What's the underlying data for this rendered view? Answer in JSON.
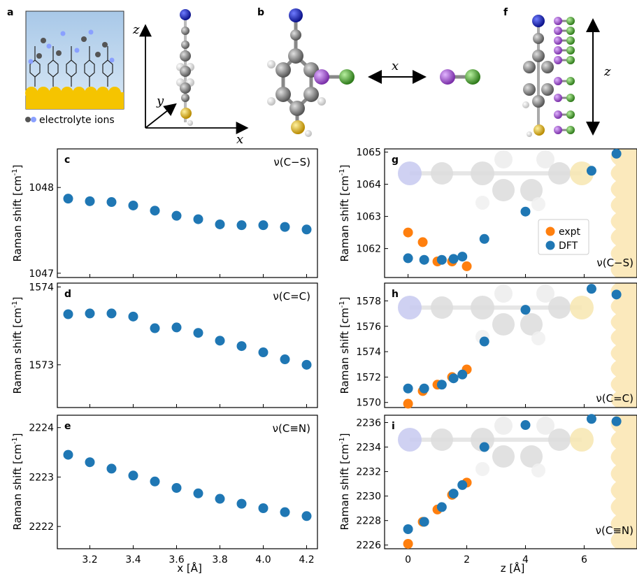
{
  "figure": {
    "legend_ions": "electrolyte ions",
    "axis_x": "x",
    "axis_y": "y",
    "axis_z": "z",
    "colors": {
      "dft": "#1f77b4",
      "expt": "#ff7f0e",
      "nitrogen": "#1a1aa8",
      "sulfur": "#d4a514",
      "iodine": "#a64dcf",
      "chlorine": "#5aa02c",
      "gold": "#f5c400",
      "electrolyte": "#aac9e6"
    }
  },
  "panels": {
    "a": "a",
    "b": "b",
    "c": "c",
    "d": "d",
    "e": "e",
    "f": "f",
    "g": "g",
    "h": "h",
    "i": "i"
  },
  "chart_data": [
    {
      "id": "c",
      "type": "scatter",
      "mode": "ν(C−S)",
      "xlabel": "",
      "ylabel": "Raman shift [cm-1]",
      "xlim": [
        3.05,
        4.25
      ],
      "ylim": [
        1046.95,
        1048.45
      ],
      "yticks": [
        1047,
        1048
      ],
      "series": [
        {
          "x": [
            3.1,
            3.2,
            3.3,
            3.4,
            3.5,
            3.6,
            3.7,
            3.8,
            3.9,
            4.0,
            4.1,
            4.2
          ],
          "y": [
            1047.87,
            1047.84,
            1047.83,
            1047.79,
            1047.73,
            1047.67,
            1047.63,
            1047.57,
            1047.56,
            1047.56,
            1047.54,
            1047.51
          ]
        }
      ]
    },
    {
      "id": "d",
      "type": "scatter",
      "mode": "ν(C=C)",
      "xlabel": "",
      "ylabel": "Raman shift [cm-1]",
      "xlim": [
        3.05,
        4.25
      ],
      "ylim": [
        1572.45,
        1574.05
      ],
      "yticks": [
        1573,
        1574
      ],
      "series": [
        {
          "x": [
            3.1,
            3.2,
            3.3,
            3.4,
            3.5,
            3.6,
            3.7,
            3.8,
            3.9,
            4.0,
            4.1,
            4.2
          ],
          "y": [
            1573.65,
            1573.66,
            1573.66,
            1573.62,
            1573.47,
            1573.48,
            1573.41,
            1573.31,
            1573.24,
            1573.16,
            1573.07,
            1573.0
          ]
        }
      ]
    },
    {
      "id": "e",
      "type": "scatter",
      "mode": "ν(C≡N)",
      "xlabel": "x [Å]",
      "ylabel": "Raman shift [cm-1]",
      "xlim": [
        3.05,
        4.25
      ],
      "ylim": [
        2221.55,
        2224.25
      ],
      "yticks": [
        2222,
        2223,
        2224
      ],
      "xticks": [
        3.2,
        3.4,
        3.6,
        3.8,
        4.0,
        4.2
      ],
      "xticklabels": [
        "3.2",
        "3.4",
        "3.6",
        "3.8",
        "4.0",
        "4.2"
      ],
      "series": [
        {
          "x": [
            3.1,
            3.2,
            3.3,
            3.4,
            3.5,
            3.6,
            3.7,
            3.8,
            3.9,
            4.0,
            4.1,
            4.2
          ],
          "y": [
            2223.45,
            2223.3,
            2223.17,
            2223.03,
            2222.91,
            2222.78,
            2222.67,
            2222.56,
            2222.46,
            2222.37,
            2222.29,
            2222.21
          ]
        }
      ]
    },
    {
      "id": "g",
      "type": "scatter",
      "mode": "ν(C−S)",
      "xlabel": "",
      "ylabel": "Raman shift [cm-1]",
      "xlim": [
        -0.8,
        7.8
      ],
      "ylim": [
        1061.1,
        1065.1
      ],
      "yticks": [
        1062,
        1063,
        1064,
        1065
      ],
      "legend": {
        "position": "center-right",
        "entries": [
          "expt",
          "DFT"
        ]
      },
      "series": [
        {
          "name": "expt",
          "x": [
            0,
            0.5,
            1.0,
            1.5,
            2.0
          ],
          "y": [
            1062.5,
            1062.2,
            1061.6,
            1061.6,
            1061.45
          ]
        },
        {
          "name": "DFT",
          "x": [
            0,
            0.55,
            1.15,
            1.55,
            1.85,
            2.6,
            4.0,
            6.25,
            7.1
          ],
          "y": [
            1061.7,
            1061.65,
            1061.65,
            1061.68,
            1061.75,
            1062.3,
            1063.15,
            1064.42,
            1064.95
          ]
        }
      ]
    },
    {
      "id": "h",
      "type": "scatter",
      "mode": "ν(C=C)",
      "xlabel": "",
      "ylabel": "Raman shift [cm-1]",
      "xlim": [
        -0.8,
        7.8
      ],
      "ylim": [
        1569.6,
        1579.4
      ],
      "yticks": [
        1570,
        1572,
        1574,
        1576,
        1578
      ],
      "series": [
        {
          "name": "expt",
          "x": [
            0,
            0.5,
            1.0,
            1.5,
            2.0
          ],
          "y": [
            1569.9,
            1570.9,
            1571.4,
            1572.0,
            1572.6
          ]
        },
        {
          "name": "DFT",
          "x": [
            0,
            0.55,
            1.15,
            1.55,
            1.85,
            2.6,
            4.0,
            6.25,
            7.1
          ],
          "y": [
            1571.1,
            1571.1,
            1571.4,
            1571.9,
            1572.2,
            1574.8,
            1577.3,
            1578.95,
            1578.5
          ]
        }
      ]
    },
    {
      "id": "i",
      "type": "scatter",
      "mode": "ν(C≡N)",
      "xlabel": "z [Å]",
      "ylabel": "Raman shift [cm-1]",
      "xlim": [
        -0.8,
        7.8
      ],
      "ylim": [
        2225.7,
        2236.6
      ],
      "yticks": [
        2226,
        2228,
        2230,
        2232,
        2234,
        2236
      ],
      "xticks": [
        0,
        2,
        4,
        6
      ],
      "xticklabels": [
        "0",
        "2",
        "4",
        "6"
      ],
      "series": [
        {
          "name": "expt",
          "x": [
            0,
            0.5,
            1.0,
            1.5,
            2.0
          ],
          "y": [
            2226.1,
            2227.9,
            2228.9,
            2230.1,
            2231.1
          ]
        },
        {
          "name": "DFT",
          "x": [
            0,
            0.55,
            1.15,
            1.55,
            1.85,
            2.6,
            4.0,
            6.25,
            7.1
          ],
          "y": [
            2227.3,
            2227.9,
            2229.1,
            2230.2,
            2230.9,
            2234.0,
            2235.8,
            2236.3,
            2236.1
          ]
        }
      ]
    }
  ]
}
